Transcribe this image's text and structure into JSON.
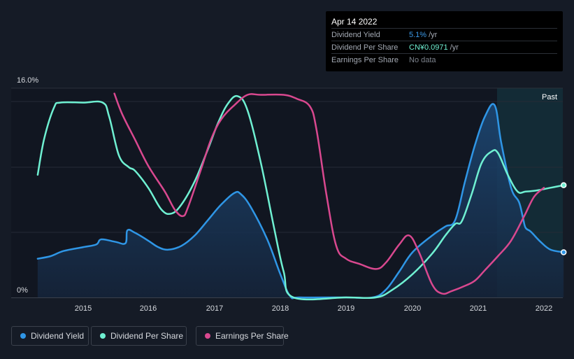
{
  "tooltip": {
    "date": "Apr 14 2022",
    "rows": [
      {
        "label": "Dividend Yield",
        "value": "5.1%",
        "unit": "/yr",
        "color": "#3b9ae8"
      },
      {
        "label": "Dividend Per Share",
        "value": "CN¥0.0971",
        "unit": "/yr",
        "color": "#6ff0d2"
      },
      {
        "label": "Earnings Per Share",
        "value": "No data",
        "unit": "",
        "color": "#7d838d"
      }
    ]
  },
  "past_label": "Past",
  "legend": [
    {
      "label": "Dividend Yield",
      "color": "#2f96e6"
    },
    {
      "label": "Dividend Per Share",
      "color": "#6ff0d2"
    },
    {
      "label": "Earnings Per Share",
      "color": "#d9488f"
    }
  ],
  "chart_data": {
    "type": "line",
    "ylim": [
      0,
      16
    ],
    "y_tick_labels": [
      "16.0%",
      "0%"
    ],
    "x_tick_labels": [
      "2015",
      "2016",
      "2017",
      "2018",
      "2019",
      "2020",
      "2021",
      "2022"
    ],
    "xlim": [
      2014.25,
      2022.3
    ],
    "series": [
      {
        "name": "Dividend Yield",
        "color": "#2f96e6",
        "fill": true,
        "points": [
          [
            2014.3,
            3.0
          ],
          [
            2014.5,
            3.2
          ],
          [
            2014.7,
            3.6
          ],
          [
            2015.0,
            3.9
          ],
          [
            2015.2,
            4.1
          ],
          [
            2015.28,
            4.5
          ],
          [
            2015.5,
            4.3
          ],
          [
            2015.65,
            4.2
          ],
          [
            2015.68,
            5.2
          ],
          [
            2015.8,
            5.0
          ],
          [
            2016.0,
            4.4
          ],
          [
            2016.15,
            3.9
          ],
          [
            2016.3,
            3.7
          ],
          [
            2016.5,
            4.0
          ],
          [
            2016.7,
            4.8
          ],
          [
            2016.9,
            6.0
          ],
          [
            2017.1,
            7.2
          ],
          [
            2017.3,
            8.1
          ],
          [
            2017.4,
            8.0
          ],
          [
            2017.55,
            7.0
          ],
          [
            2017.8,
            4.5
          ],
          [
            2018.0,
            1.8
          ],
          [
            2018.15,
            0.1
          ],
          [
            2018.3,
            0.0
          ],
          [
            2019.0,
            0.0
          ],
          [
            2019.4,
            0.0
          ],
          [
            2019.6,
            0.6
          ],
          [
            2019.8,
            2.0
          ],
          [
            2020.0,
            3.5
          ],
          [
            2020.3,
            4.8
          ],
          [
            2020.5,
            5.5
          ],
          [
            2020.65,
            6.0
          ],
          [
            2020.8,
            9.0
          ],
          [
            2020.95,
            11.8
          ],
          [
            2021.1,
            14.0
          ],
          [
            2021.25,
            14.9
          ],
          [
            2021.35,
            12.0
          ],
          [
            2021.5,
            8.5
          ],
          [
            2021.62,
            7.4
          ],
          [
            2021.68,
            6.2
          ],
          [
            2021.72,
            5.4
          ],
          [
            2021.8,
            5.1
          ],
          [
            2021.95,
            4.3
          ],
          [
            2022.1,
            3.7
          ],
          [
            2022.3,
            3.5
          ]
        ]
      },
      {
        "name": "Dividend Per Share",
        "color": "#6ff0d2",
        "fill": false,
        "points": [
          [
            2014.3,
            9.5
          ],
          [
            2014.4,
            12.3
          ],
          [
            2014.55,
            14.7
          ],
          [
            2014.65,
            15.1
          ],
          [
            2015.0,
            15.1
          ],
          [
            2015.3,
            15.1
          ],
          [
            2015.4,
            14.0
          ],
          [
            2015.55,
            11.0
          ],
          [
            2015.7,
            10.1
          ],
          [
            2015.8,
            9.8
          ],
          [
            2016.0,
            8.5
          ],
          [
            2016.2,
            6.8
          ],
          [
            2016.35,
            6.5
          ],
          [
            2016.5,
            7.2
          ],
          [
            2016.7,
            9.0
          ],
          [
            2016.9,
            11.5
          ],
          [
            2017.05,
            13.5
          ],
          [
            2017.2,
            15.0
          ],
          [
            2017.35,
            15.6
          ],
          [
            2017.5,
            14.5
          ],
          [
            2017.7,
            10.5
          ],
          [
            2017.9,
            5.5
          ],
          [
            2018.05,
            2.0
          ],
          [
            2018.2,
            0.0
          ],
          [
            2019.0,
            0.0
          ],
          [
            2019.45,
            0.0
          ],
          [
            2019.7,
            0.6
          ],
          [
            2020.0,
            1.8
          ],
          [
            2020.3,
            3.4
          ],
          [
            2020.5,
            4.8
          ],
          [
            2020.65,
            5.7
          ],
          [
            2020.75,
            5.9
          ],
          [
            2020.9,
            8.0
          ],
          [
            2021.05,
            10.4
          ],
          [
            2021.2,
            11.3
          ],
          [
            2021.3,
            11.2
          ],
          [
            2021.45,
            9.5
          ],
          [
            2021.6,
            8.2
          ],
          [
            2021.72,
            8.2
          ],
          [
            2021.9,
            8.3
          ],
          [
            2022.1,
            8.5
          ],
          [
            2022.3,
            8.7
          ]
        ]
      },
      {
        "name": "Earnings Per Share",
        "color": "#d9488f",
        "fill": false,
        "points": [
          [
            2015.48,
            15.8
          ],
          [
            2015.6,
            14.2
          ],
          [
            2015.8,
            12.2
          ],
          [
            2016.0,
            10.2
          ],
          [
            2016.25,
            8.2
          ],
          [
            2016.4,
            6.8
          ],
          [
            2016.52,
            6.3
          ],
          [
            2016.6,
            7.0
          ],
          [
            2016.8,
            10.0
          ],
          [
            2016.95,
            12.3
          ],
          [
            2017.1,
            13.8
          ],
          [
            2017.3,
            14.9
          ],
          [
            2017.5,
            15.7
          ],
          [
            2017.7,
            15.7
          ],
          [
            2018.05,
            15.7
          ],
          [
            2018.25,
            15.4
          ],
          [
            2018.45,
            14.8
          ],
          [
            2018.55,
            13.0
          ],
          [
            2018.7,
            8.0
          ],
          [
            2018.85,
            4.0
          ],
          [
            2019.0,
            3.0
          ],
          [
            2019.2,
            2.6
          ],
          [
            2019.45,
            2.2
          ],
          [
            2019.6,
            2.7
          ],
          [
            2019.8,
            4.1
          ],
          [
            2019.95,
            4.8
          ],
          [
            2020.1,
            3.5
          ],
          [
            2020.3,
            1.0
          ],
          [
            2020.45,
            0.3
          ],
          [
            2020.6,
            0.5
          ],
          [
            2020.8,
            0.9
          ],
          [
            2020.95,
            1.3
          ],
          [
            2021.1,
            2.1
          ],
          [
            2021.3,
            3.2
          ],
          [
            2021.5,
            4.4
          ],
          [
            2021.7,
            6.3
          ],
          [
            2021.85,
            7.8
          ],
          [
            2022.0,
            8.5
          ]
        ]
      }
    ]
  }
}
